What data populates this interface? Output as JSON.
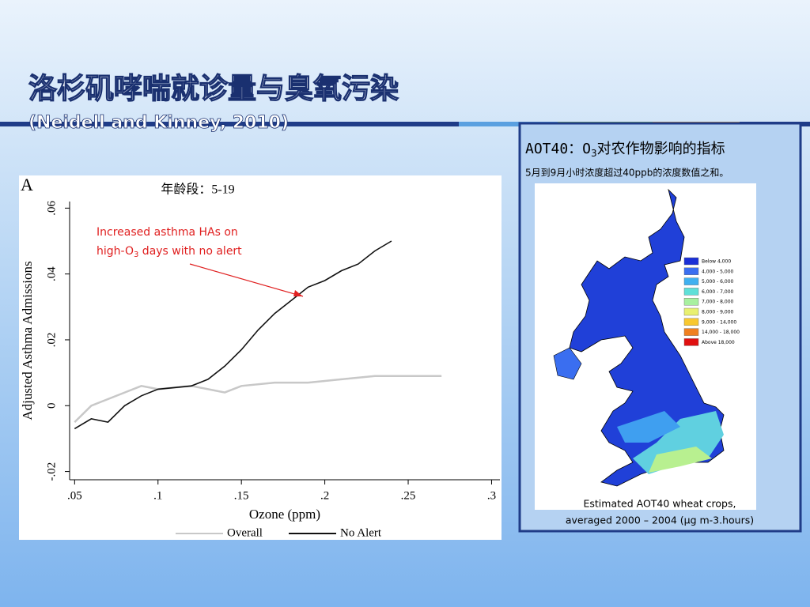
{
  "slide": {
    "title": "洛杉矶哮喘就诊量与臭氧污染",
    "subtitle": "(Neidell and Kinney, 2010)"
  },
  "chart_data": {
    "type": "line",
    "panel_label": "A",
    "age_label": "年龄段：5-19",
    "annotation": {
      "line1": "Increased asthma HAs on",
      "line2": [
        "high-O",
        "3",
        " days with no alert"
      ],
      "color": "#e02020"
    },
    "x_label": "Ozone (ppm)",
    "y_label": "Adjusted Asthma Admissions",
    "xlim": [
      0.047,
      0.305
    ],
    "ylim": [
      -0.0225,
      0.062
    ],
    "xticks": [
      {
        "value": 0.05,
        "label": ".05"
      },
      {
        "value": 0.1,
        "label": ".1"
      },
      {
        "value": 0.15,
        "label": ".15"
      },
      {
        "value": 0.2,
        "label": ".2"
      },
      {
        "value": 0.25,
        "label": ".25"
      },
      {
        "value": 0.3,
        "label": ".3"
      }
    ],
    "yticks": [
      {
        "value": -0.02,
        "label": "-.02"
      },
      0,
      {
        "value": 0.02,
        "label": ".02"
      },
      {
        "value": 0.04,
        "label": ".04"
      },
      {
        "value": 0.06,
        "label": ".06"
      }
    ],
    "series": [
      {
        "name": "Overall",
        "color": "#c8c8c8",
        "x": [
          0.05,
          0.06,
          0.08,
          0.09,
          0.1,
          0.12,
          0.13,
          0.14,
          0.15,
          0.17,
          0.19,
          0.21,
          0.23,
          0.25,
          0.27
        ],
        "values": [
          -0.005,
          0.0,
          0.004,
          0.006,
          0.005,
          0.006,
          0.005,
          0.004,
          0.006,
          0.007,
          0.007,
          0.008,
          0.009,
          0.009,
          0.009
        ]
      },
      {
        "name": "No Alert",
        "color": "#111111",
        "x": [
          0.05,
          0.06,
          0.07,
          0.08,
          0.09,
          0.1,
          0.12,
          0.13,
          0.14,
          0.15,
          0.16,
          0.17,
          0.18,
          0.19,
          0.2,
          0.21,
          0.22,
          0.23,
          0.24
        ],
        "values": [
          -0.007,
          -0.004,
          -0.005,
          0.0,
          0.003,
          0.005,
          0.006,
          0.008,
          0.012,
          0.017,
          0.023,
          0.028,
          0.032,
          0.036,
          0.038,
          0.041,
          0.043,
          0.047,
          0.05
        ]
      }
    ]
  },
  "map": {
    "heading": [
      "AOT40：O",
      "3",
      "对农作物影响的指标"
    ],
    "note": "5月到9月小时浓度超过40ppb的浓度数值之和。",
    "caption": [
      "Estimated AOT40 wheat crops,",
      "averaged 2000 – 2004 (µg m-3.hours)"
    ],
    "legend": [
      {
        "label": "Below 4,000",
        "color": "#1a2fd6"
      },
      {
        "label": "4,000 - 5,000",
        "color": "#3a6ef0"
      },
      {
        "label": "5,000 - 6,000",
        "color": "#3fb0f0"
      },
      {
        "label": "6,000 - 7,000",
        "color": "#5fe0d8"
      },
      {
        "label": "7,000 - 8,000",
        "color": "#a8f0a0"
      },
      {
        "label": "8,000 - 9,000",
        "color": "#e8f070"
      },
      {
        "label": "9,000 - 14,000",
        "color": "#f8c830"
      },
      {
        "label": "14,000 - 18,000",
        "color": "#f08020"
      },
      {
        "label": "Above 18,000",
        "color": "#e01010"
      }
    ]
  }
}
